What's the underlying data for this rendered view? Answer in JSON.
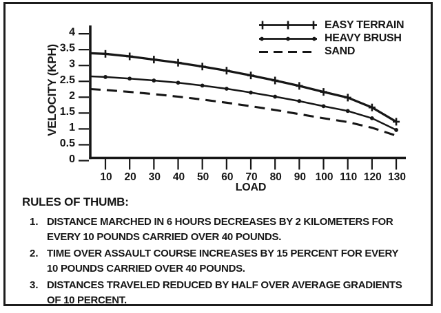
{
  "page": {
    "background": "#ffffff",
    "ink": "#161616"
  },
  "chart_data": {
    "type": "line",
    "title": "",
    "xlabel": "LOAD",
    "ylabel": "VELOCITY (KPH)",
    "x": [
      10,
      20,
      30,
      40,
      50,
      60,
      70,
      80,
      90,
      100,
      110,
      120,
      130
    ],
    "x_ticks": [
      10,
      20,
      30,
      40,
      50,
      60,
      70,
      80,
      90,
      100,
      110,
      120,
      130
    ],
    "y_ticks": [
      4,
      3.5,
      3,
      2.5,
      2,
      1.5,
      1,
      0.5,
      0
    ],
    "xlim": [
      0,
      135
    ],
    "ylim": [
      0,
      4
    ],
    "grid": false,
    "legend_position": "top-right",
    "series": [
      {
        "name": "EASY TERRAIN",
        "line_style": "solid",
        "marker": "plus",
        "axis_intercept_value": 3.3,
        "values": [
          3.28,
          3.2,
          3.1,
          3.0,
          2.88,
          2.75,
          2.6,
          2.44,
          2.27,
          2.08,
          1.9,
          1.59,
          1.14
        ]
      },
      {
        "name": "HEAVY BRUSH",
        "line_style": "solid",
        "marker": "dot",
        "axis_intercept_value": 2.57,
        "values": [
          2.55,
          2.5,
          2.44,
          2.37,
          2.28,
          2.18,
          2.06,
          1.93,
          1.79,
          1.63,
          1.48,
          1.25,
          0.88
        ]
      },
      {
        "name": "SAND",
        "line_style": "dashed",
        "marker": "none",
        "axis_intercept_value": 2.17,
        "values": [
          2.14,
          2.08,
          2.01,
          1.93,
          1.84,
          1.74,
          1.63,
          1.51,
          1.38,
          1.25,
          1.13,
          0.95,
          0.7
        ]
      }
    ]
  },
  "rules": {
    "heading": "RULES OF THUMB:",
    "items": [
      {
        "number": "1.",
        "lines": [
          "DISTANCE MARCHED IN 6 HOURS DECREASES BY 2 KILOMETERS FOR",
          "EVERY 10 POUNDS CARRIED OVER 40 POUNDS."
        ]
      },
      {
        "number": "2.",
        "lines": [
          "TIME OVER ASSAULT COURSE INCREASES BY 15 PERCENT FOR EVERY",
          "10 POUNDS CARRIED OVER 40 POUNDS."
        ]
      },
      {
        "number": "3.",
        "lines": [
          "DISTANCES TRAVELED REDUCED BY HALF OVER AVERAGE GRADIENTS",
          "OF 10 PERCENT."
        ]
      }
    ]
  }
}
